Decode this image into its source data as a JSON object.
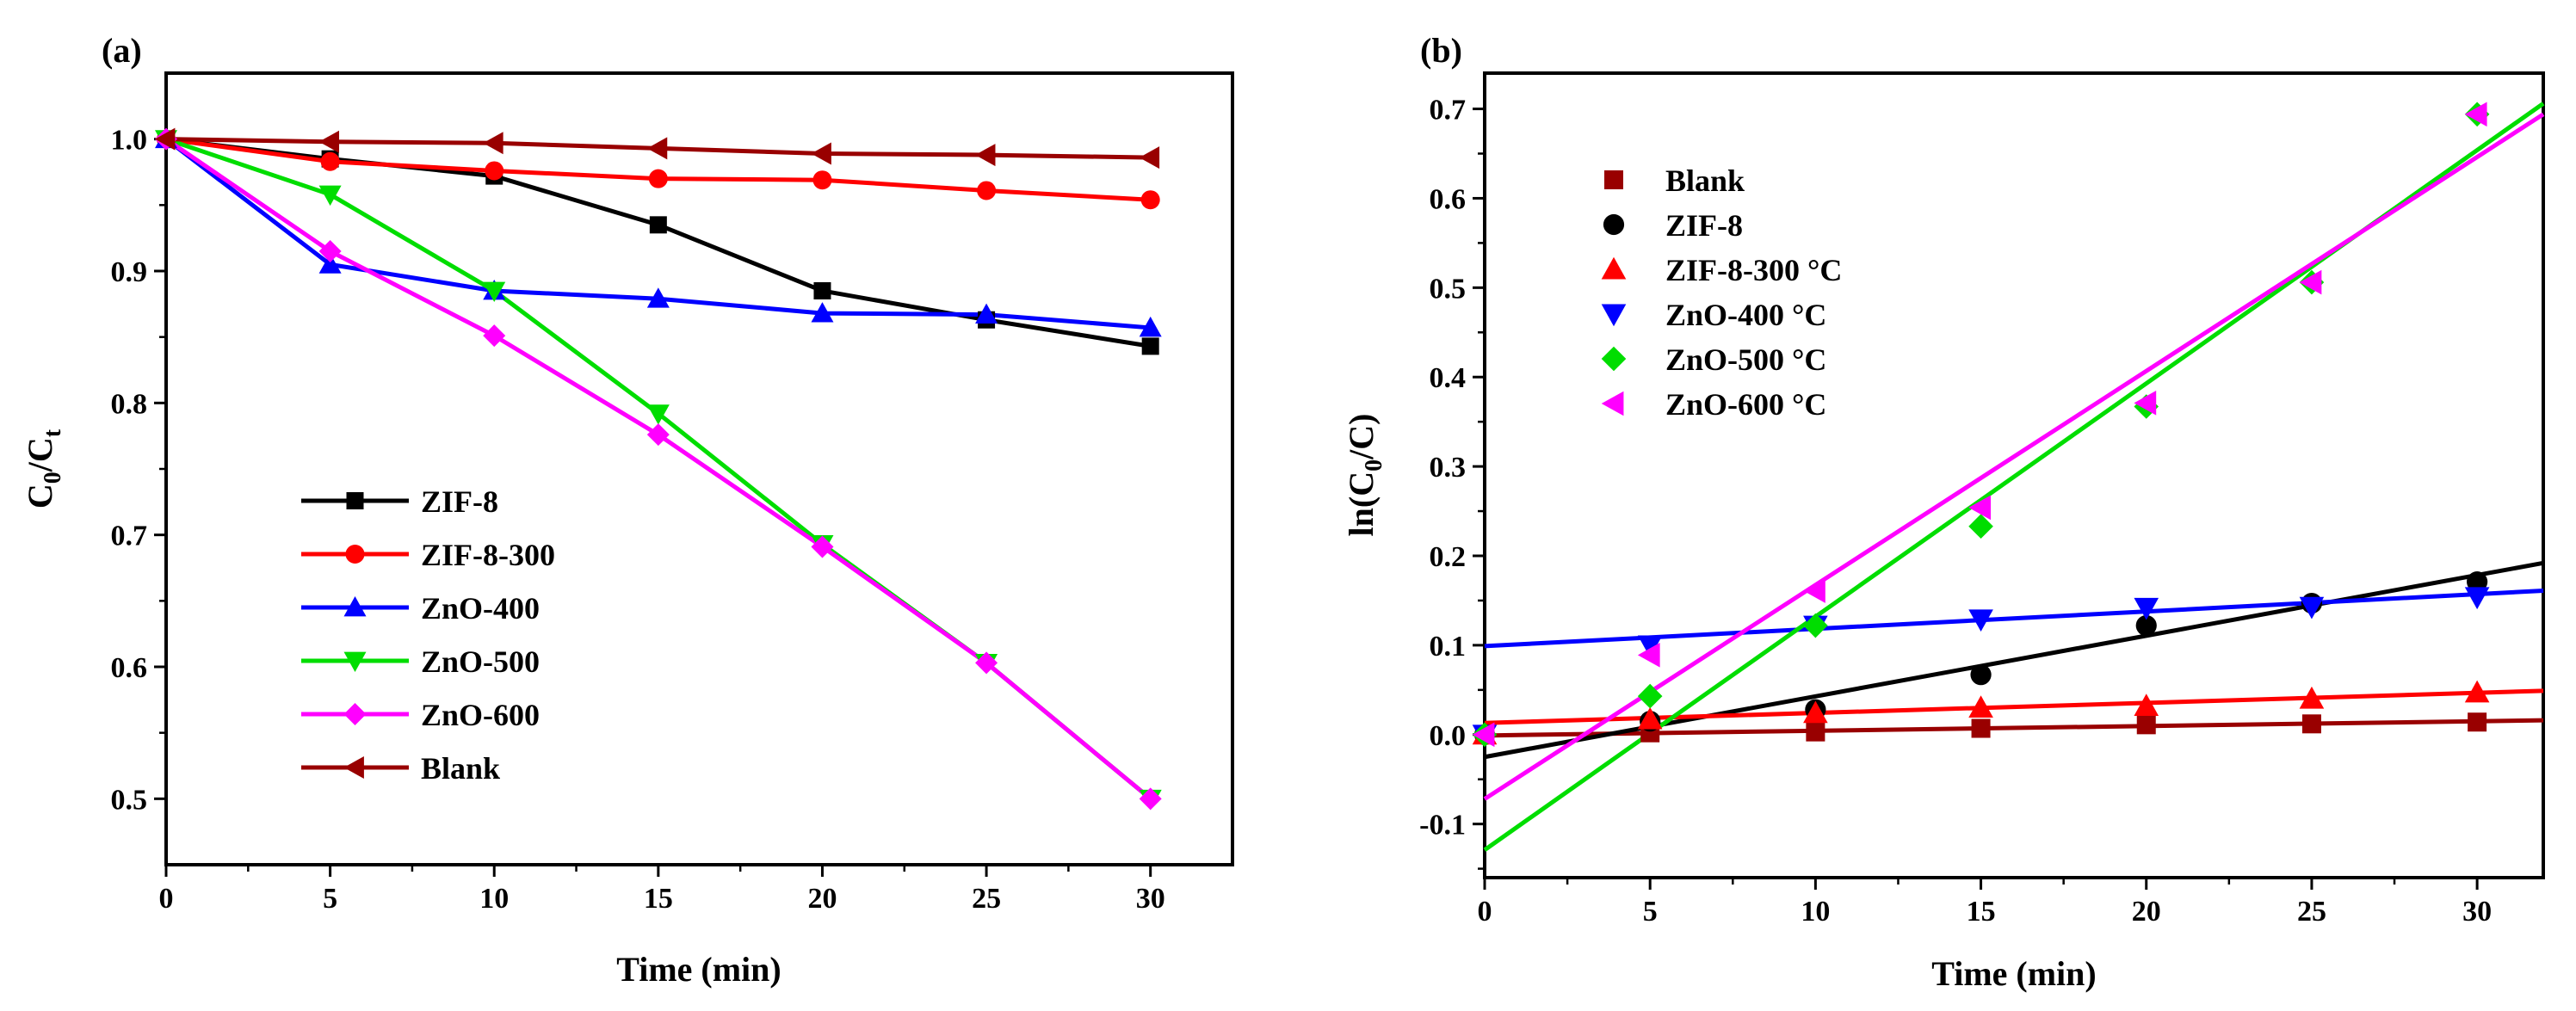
{
  "chart_data": [
    {
      "panel_label": "(a)",
      "type": "line",
      "xlabel": "Time (min)",
      "ylabel_main": "C",
      "ylabel_sub0": "0",
      "ylabel_mid": "/C",
      "ylabel_sub1": "t",
      "xlim": [
        0,
        32.5
      ],
      "ylim": [
        0.45,
        1.05
      ],
      "xticks": [
        0,
        5,
        10,
        15,
        20,
        25,
        30
      ],
      "xtick_labels": [
        "0",
        "5",
        "10",
        "15",
        "20",
        "25",
        "30"
      ],
      "yticks": [
        0.5,
        0.6,
        0.7,
        0.8,
        0.9,
        1.0
      ],
      "ytick_labels": [
        "0.5",
        "0.6",
        "0.7",
        "0.8",
        "0.9",
        "1.0"
      ],
      "legend_position": "bottom-left",
      "x": [
        0,
        5,
        10,
        15,
        20,
        25,
        30
      ],
      "series": [
        {
          "name": "ZIF-8",
          "color": "#000000",
          "marker": "square",
          "values": [
            1.0,
            0.985,
            0.972,
            0.935,
            0.885,
            0.863,
            0.843
          ]
        },
        {
          "name": "ZIF-8-300",
          "color": "#ff0000",
          "marker": "circle",
          "values": [
            1.0,
            0.983,
            0.976,
            0.97,
            0.969,
            0.961,
            0.954
          ]
        },
        {
          "name": "ZnO-400",
          "color": "#0000ff",
          "marker": "triangle-up",
          "values": [
            1.0,
            0.905,
            0.885,
            0.879,
            0.868,
            0.867,
            0.857
          ]
        },
        {
          "name": "ZnO-500",
          "color": "#00dd00",
          "marker": "triangle-down",
          "values": [
            1.0,
            0.958,
            0.885,
            0.792,
            0.693,
            0.603,
            0.5
          ]
        },
        {
          "name": "ZnO-600",
          "color": "#ff00ff",
          "marker": "diamond",
          "values": [
            1.0,
            0.915,
            0.851,
            0.776,
            0.691,
            0.603,
            0.5
          ]
        },
        {
          "name": "Blank",
          "color": "#990000",
          "marker": "triangle-left",
          "values": [
            1.0,
            0.998,
            0.997,
            0.993,
            0.989,
            0.988,
            0.986
          ]
        }
      ]
    },
    {
      "panel_label": "(b)",
      "type": "scatter",
      "xlabel": "Time (min)",
      "ylabel_main": "ln(C",
      "ylabel_sub0": "0",
      "ylabel_mid": "/C)",
      "xlim": [
        0,
        32
      ],
      "ylim": [
        -0.16,
        0.74
      ],
      "xticks": [
        0,
        5,
        10,
        15,
        20,
        25,
        30
      ],
      "xtick_labels": [
        "0",
        "5",
        "10",
        "15",
        "20",
        "25",
        "30"
      ],
      "yticks": [
        -0.1,
        0.0,
        0.1,
        0.2,
        0.3,
        0.4,
        0.5,
        0.6,
        0.7
      ],
      "ytick_labels": [
        "-0.1",
        "0.0",
        "0.1",
        "0.2",
        "0.3",
        "0.4",
        "0.5",
        "0.6",
        "0.7"
      ],
      "legend_position": "top-left",
      "x": [
        0,
        5,
        10,
        15,
        20,
        25,
        30
      ],
      "fit_x": [
        0,
        32
      ],
      "series": [
        {
          "name": "Blank",
          "color": "#990000",
          "marker": "square",
          "values": [
            0.0,
            0.002,
            0.003,
            0.007,
            0.011,
            0.012,
            0.014
          ],
          "fit": [
            -0.001,
            0.016
          ]
        },
        {
          "name": "ZIF-8",
          "color": "#000000",
          "marker": "circle",
          "values": [
            0.0,
            0.015,
            0.028,
            0.067,
            0.122,
            0.147,
            0.171
          ],
          "fit": [
            -0.025,
            0.192
          ]
        },
        {
          "name": "ZIF-8-300 °C",
          "color": "#ff0000",
          "marker": "triangle-up",
          "values": [
            0.0,
            0.017,
            0.024,
            0.03,
            0.032,
            0.04,
            0.047
          ],
          "fit": [
            0.013,
            0.049
          ]
        },
        {
          "name": "ZnO-400 °C",
          "color": "#0000ff",
          "marker": "triangle-down",
          "values": [
            0.0,
            0.1,
            0.122,
            0.129,
            0.142,
            0.143,
            0.154
          ],
          "fit": [
            0.099,
            0.161
          ]
        },
        {
          "name": "ZnO-500 °C",
          "color": "#00dd00",
          "marker": "diamond",
          "values": [
            0.0,
            0.043,
            0.122,
            0.233,
            0.367,
            0.506,
            0.694
          ],
          "fit": [
            -0.129,
            0.706
          ]
        },
        {
          "name": "ZnO-600 °C",
          "color": "#ff00ff",
          "marker": "triangle-left",
          "values": [
            0.0,
            0.089,
            0.161,
            0.254,
            0.371,
            0.506,
            0.694
          ],
          "fit": [
            -0.072,
            0.694
          ]
        }
      ]
    }
  ]
}
